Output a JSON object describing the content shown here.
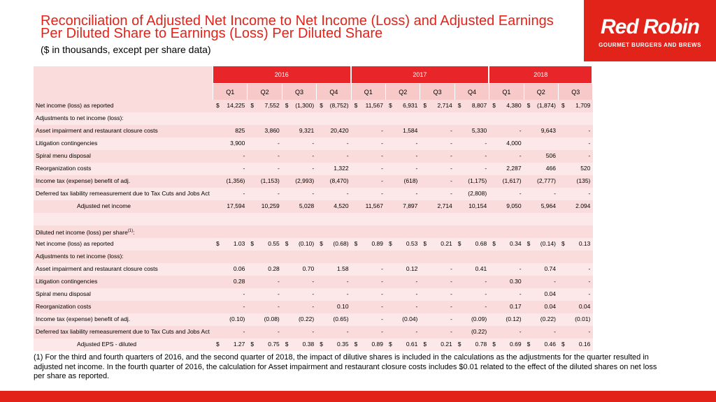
{
  "header": {
    "title": "Reconciliation of Adjusted Net Income to Net Income (Loss) and Adjusted Earnings Per Diluted Share to Earnings (Loss) Per Diluted Share",
    "subtitle": "($ in thousands, except per share data)"
  },
  "logo": {
    "name": "Red Robin",
    "tagline": "GOURMET BURGERS AND BREWS"
  },
  "table": {
    "currency_symbol": "$",
    "years": [
      {
        "label": "2016",
        "quarters": [
          "Q1",
          "Q2",
          "Q3",
          "Q4"
        ]
      },
      {
        "label": "2017",
        "quarters": [
          "Q1",
          "Q2",
          "Q3",
          "Q4"
        ]
      },
      {
        "label": "2018",
        "quarters": [
          "Q1",
          "Q2",
          "Q3"
        ]
      }
    ],
    "rows": [
      {
        "kind": "data",
        "dollar": true,
        "label": "Net income (loss) as reported",
        "cells": [
          "14,225",
          "7,552",
          "(1,300)",
          "(8,752)",
          "11,567",
          "6,931",
          "2,714",
          "8,807",
          "4,380",
          "(1,874)",
          "1,709"
        ]
      },
      {
        "kind": "heading",
        "label": "Adjustments to net income (loss):"
      },
      {
        "kind": "data",
        "label": "Asset impairment and restaurant closure costs",
        "cells": [
          "825",
          "3,860",
          "9,321",
          "20,420",
          "-",
          "1,584",
          "-",
          "5,330",
          "-",
          "9,643",
          "-"
        ]
      },
      {
        "kind": "data",
        "label": "Litigation contingencies",
        "cells": [
          "3,900",
          "-",
          "-",
          "-",
          "-",
          "-",
          "-",
          "-",
          "4,000",
          null,
          "-"
        ]
      },
      {
        "kind": "data",
        "label": "Spiral menu disposal",
        "cells": [
          "-",
          "-",
          "-",
          "-",
          "-",
          "-",
          "-",
          "-",
          "-",
          "506",
          "-"
        ]
      },
      {
        "kind": "data",
        "label": "Reorganization costs",
        "cells": [
          "-",
          "-",
          "-",
          "1,322",
          "-",
          "-",
          "-",
          "-",
          "2,287",
          "466",
          "520"
        ]
      },
      {
        "kind": "data",
        "label": "Income tax (expense) benefit of adj.",
        "cells": [
          "(1,356)",
          "(1,153)",
          "(2,993)",
          "(8,470)",
          "-",
          "(618)",
          "-",
          "(1,175)",
          "(1,617)",
          "(2,777)",
          "(135)"
        ]
      },
      {
        "kind": "data",
        "label": "Deferred tax liability remeasurement due to Tax Cuts and Jobs Act",
        "cells": [
          "-",
          "-",
          "-",
          "-",
          "-",
          "-",
          "-",
          "(2,808)",
          "-",
          "-",
          "-"
        ]
      },
      {
        "kind": "total",
        "label": "Adjusted net income",
        "cells": [
          "17,594",
          "10,259",
          "5,028",
          "4,520",
          "11,567",
          "7,897",
          "2,714",
          "10,154",
          "9,050",
          "5,964",
          "2.094"
        ]
      },
      {
        "kind": "blank"
      },
      {
        "kind": "heading",
        "label": "Diluted net income (loss) per share",
        "note": "(1)",
        "label_end": ":"
      },
      {
        "kind": "data",
        "dollar": true,
        "label": "Net income (loss) as reported",
        "cells": [
          "1.03",
          "0.55",
          "(0.10)",
          "(0.68)",
          "0.89",
          "0.53",
          "0.21",
          "0.68",
          "0.34",
          "(0.14)",
          "0.13"
        ]
      },
      {
        "kind": "heading",
        "label": "Adjustments to net income (loss):"
      },
      {
        "kind": "data",
        "label": "Asset impairment and restaurant closure costs",
        "cells": [
          "0.06",
          "0.28",
          "0.70",
          "1.58",
          "-",
          "0.12",
          "-",
          "0.41",
          "-",
          "0.74",
          "-"
        ]
      },
      {
        "kind": "data",
        "label": "Litigation contingencies",
        "cells": [
          "0.28",
          "-",
          "-",
          "-",
          "-",
          "-",
          "-",
          "-",
          "0.30",
          "-",
          "-"
        ]
      },
      {
        "kind": "data",
        "label": "Spiral menu disposal",
        "cells": [
          "-",
          "-",
          "-",
          "-",
          "-",
          "-",
          "-",
          "-",
          "-",
          "0.04",
          "-"
        ]
      },
      {
        "kind": "data",
        "label": "Reorganization costs",
        "cells": [
          "-",
          "-",
          "-",
          "0.10",
          "-",
          "-",
          "-",
          "-",
          "0.17",
          "0.04",
          "0.04"
        ]
      },
      {
        "kind": "data",
        "label": "Income tax (expense) benefit of adj.",
        "cells": [
          "(0.10)",
          "(0.08)",
          "(0.22)",
          "(0.65)",
          "-",
          "(0.04)",
          "-",
          "(0.09)",
          "(0.12)",
          "(0.22)",
          "(0.01)"
        ]
      },
      {
        "kind": "data",
        "label": "Deferred tax liability remeasurement due to Tax Cuts and Jobs Act",
        "cells": [
          "-",
          "-",
          "-",
          "-",
          "-",
          "-",
          "-",
          "(0.22)",
          "-",
          "-",
          "-"
        ]
      },
      {
        "kind": "total",
        "dollar": true,
        "label": "Adjusted EPS - diluted",
        "cells": [
          "1.27",
          "0.75",
          "0.38",
          "0.35",
          "0.89",
          "0.61",
          "0.21",
          "0.78",
          "0.69",
          "0.46",
          "0.16"
        ]
      }
    ]
  },
  "footnote": "(1) For the third and fourth quarters of 2016, and the second quarter of 2018, the impact of dilutive shares is included in the calculations as the adjustments for the quarter resulted in adjusted net income. In the fourth quarter of 2016, the calculation for Asset impairment and restaurant closure costs includes $0.01 related to the effect of the diluted shares on net loss per share as reported."
}
